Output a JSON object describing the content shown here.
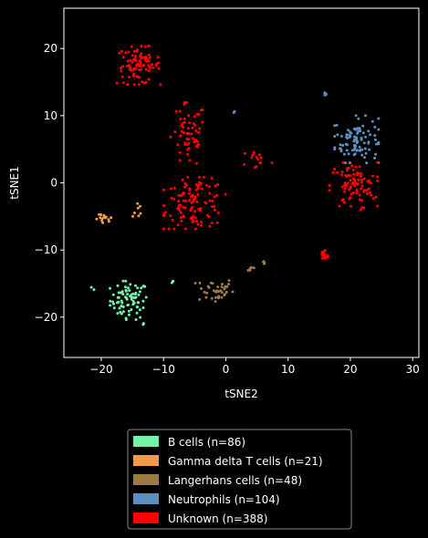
{
  "chart_data": {
    "type": "scatter",
    "title": "",
    "xlabel": "tSNE2",
    "ylabel": "tSNE1",
    "xlim": [
      -26,
      31
    ],
    "ylim": [
      -26,
      26
    ],
    "xticks": [
      -20,
      -10,
      0,
      10,
      20,
      30
    ],
    "yticks": [
      -20,
      -10,
      0,
      10,
      20
    ],
    "grid": false,
    "background": "#000000",
    "legend_position": "below",
    "series": [
      {
        "name": "B cells (n=86)",
        "color": "#6ff5a6",
        "clusters": [
          {
            "center": [
              -15.5,
              -17.5
            ],
            "spread": [
              2.8,
              2.6
            ],
            "count": 78
          },
          {
            "center": [
              -21.5,
              -15.8
            ],
            "spread": [
              0.3,
              0.3
            ],
            "count": 2
          },
          {
            "center": [
              -13.2,
              -21.0
            ],
            "spread": [
              0.3,
              0.2
            ],
            "count": 3
          },
          {
            "center": [
              -8.6,
              -14.6
            ],
            "spread": [
              0.2,
              0.4
            ],
            "count": 3
          }
        ]
      },
      {
        "name": "Gamma delta T cells (n=21)",
        "color": "#f2994a",
        "clusters": [
          {
            "center": [
              -19.5,
              -5.5
            ],
            "spread": [
              1.3,
              0.7
            ],
            "count": 14
          },
          {
            "center": [
              -14.2,
              -4.0
            ],
            "spread": [
              0.7,
              1.2
            ],
            "count": 7
          }
        ]
      },
      {
        "name": "Langerhans cells (n=48)",
        "color": "#9c7b42",
        "clusters": [
          {
            "center": [
              -1.8,
              -16.0
            ],
            "spread": [
              2.8,
              1.8
            ],
            "count": 38
          },
          {
            "center": [
              4.0,
              -12.7
            ],
            "spread": [
              0.8,
              0.5
            ],
            "count": 6
          },
          {
            "center": [
              6.2,
              -12.0
            ],
            "spread": [
              0.3,
              0.5
            ],
            "count": 4
          }
        ]
      },
      {
        "name": "Neutrophils (n=104)",
        "color": "#5b8ec1",
        "clusters": [
          {
            "center": [
              21.0,
              6.5
            ],
            "spread": [
              3.2,
              3.2
            ],
            "count": 98
          },
          {
            "center": [
              16.0,
              13.2
            ],
            "spread": [
              0.5,
              0.2
            ],
            "count": 4
          },
          {
            "center": [
              1.5,
              10.5
            ],
            "spread": [
              0.2,
              0.2
            ],
            "count": 2
          }
        ]
      },
      {
        "name": "Unknown (n=388)",
        "color": "#ff0000",
        "clusters": [
          {
            "center": [
              -14.0,
              17.5
            ],
            "spread": [
              3.2,
              2.6
            ],
            "count": 95
          },
          {
            "center": [
              -6.0,
              7.0
            ],
            "spread": [
              2.6,
              4.5
            ],
            "count": 60
          },
          {
            "center": [
              -5.0,
              -3.0
            ],
            "spread": [
              4.5,
              3.5
            ],
            "count": 110
          },
          {
            "center": [
              20.5,
              -0.5
            ],
            "spread": [
              3.5,
              3.2
            ],
            "count": 90
          },
          {
            "center": [
              15.8,
              -10.8
            ],
            "spread": [
              0.6,
              1.0
            ],
            "count": 18
          },
          {
            "center": [
              5.0,
              3.5
            ],
            "spread": [
              2.2,
              1.5
            ],
            "count": 15
          }
        ]
      }
    ]
  }
}
